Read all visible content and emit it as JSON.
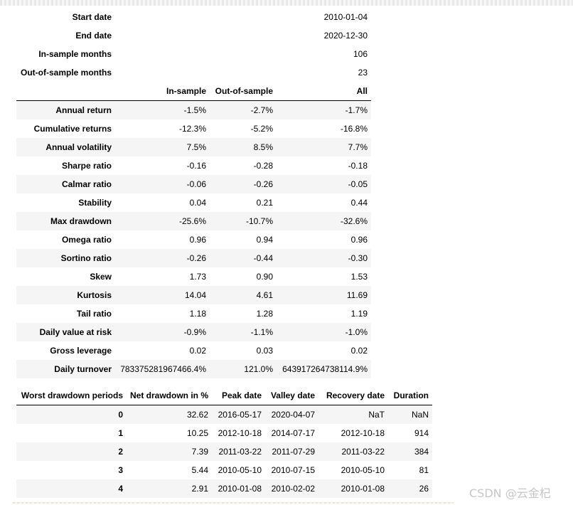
{
  "summary": {
    "start_date_label": "Start date",
    "start_date_value": "2010-01-04",
    "end_date_label": "End date",
    "end_date_value": "2020-12-30",
    "in_sample_months_label": "In-sample months",
    "in_sample_months_value": "106",
    "out_of_sample_months_label": "Out-of-sample months",
    "out_of_sample_months_value": "23"
  },
  "perf": {
    "columns": [
      "In-sample",
      "Out-of-sample",
      "All"
    ],
    "rows": [
      {
        "label": "Annual return",
        "in_sample": "-1.5%",
        "out_of_sample": "-2.7%",
        "all": "-1.7%"
      },
      {
        "label": "Cumulative returns",
        "in_sample": "-12.3%",
        "out_of_sample": "-5.2%",
        "all": "-16.8%"
      },
      {
        "label": "Annual volatility",
        "in_sample": "7.5%",
        "out_of_sample": "8.5%",
        "all": "7.7%"
      },
      {
        "label": "Sharpe ratio",
        "in_sample": "-0.16",
        "out_of_sample": "-0.28",
        "all": "-0.18"
      },
      {
        "label": "Calmar ratio",
        "in_sample": "-0.06",
        "out_of_sample": "-0.26",
        "all": "-0.05"
      },
      {
        "label": "Stability",
        "in_sample": "0.04",
        "out_of_sample": "0.21",
        "all": "0.44"
      },
      {
        "label": "Max drawdown",
        "in_sample": "-25.6%",
        "out_of_sample": "-10.7%",
        "all": "-32.6%"
      },
      {
        "label": "Omega ratio",
        "in_sample": "0.96",
        "out_of_sample": "0.94",
        "all": "0.96"
      },
      {
        "label": "Sortino ratio",
        "in_sample": "-0.26",
        "out_of_sample": "-0.44",
        "all": "-0.30"
      },
      {
        "label": "Skew",
        "in_sample": "1.73",
        "out_of_sample": "0.90",
        "all": "1.53"
      },
      {
        "label": "Kurtosis",
        "in_sample": "14.04",
        "out_of_sample": "4.61",
        "all": "11.69"
      },
      {
        "label": "Tail ratio",
        "in_sample": "1.18",
        "out_of_sample": "1.28",
        "all": "1.19"
      },
      {
        "label": "Daily value at risk",
        "in_sample": "-0.9%",
        "out_of_sample": "-1.1%",
        "all": "-1.0%"
      },
      {
        "label": "Gross leverage",
        "in_sample": "0.02",
        "out_of_sample": "0.03",
        "all": "0.02"
      },
      {
        "label": "Daily turnover",
        "in_sample": "783375281967466.4%",
        "out_of_sample": "121.0%",
        "all": "643917264738114.9%"
      }
    ]
  },
  "drawdowns": {
    "columns": [
      "Worst drawdown periods",
      "Net drawdown in %",
      "Peak date",
      "Valley date",
      "Recovery date",
      "Duration"
    ],
    "rows": [
      {
        "index": "0",
        "net": "32.62",
        "peak": "2016-05-17",
        "valley": "2020-04-07",
        "recovery": "NaT",
        "duration": "NaN"
      },
      {
        "index": "1",
        "net": "10.25",
        "peak": "2012-10-18",
        "valley": "2014-07-17",
        "recovery": "2012-10-18",
        "duration": "914"
      },
      {
        "index": "2",
        "net": "7.39",
        "peak": "2011-03-22",
        "valley": "2011-07-29",
        "recovery": "2011-03-22",
        "duration": "384"
      },
      {
        "index": "3",
        "net": "5.44",
        "peak": "2010-05-10",
        "valley": "2010-07-15",
        "recovery": "2010-05-10",
        "duration": "81"
      },
      {
        "index": "4",
        "net": "2.91",
        "peak": "2010-01-08",
        "valley": "2010-02-02",
        "recovery": "2010-01-08",
        "duration": "26"
      }
    ]
  },
  "watermark": "CSDN @云金杞",
  "colors": {
    "stripe": "#f5f5f5",
    "header_rule": "#000000",
    "watermark": "#c7c7c7"
  }
}
